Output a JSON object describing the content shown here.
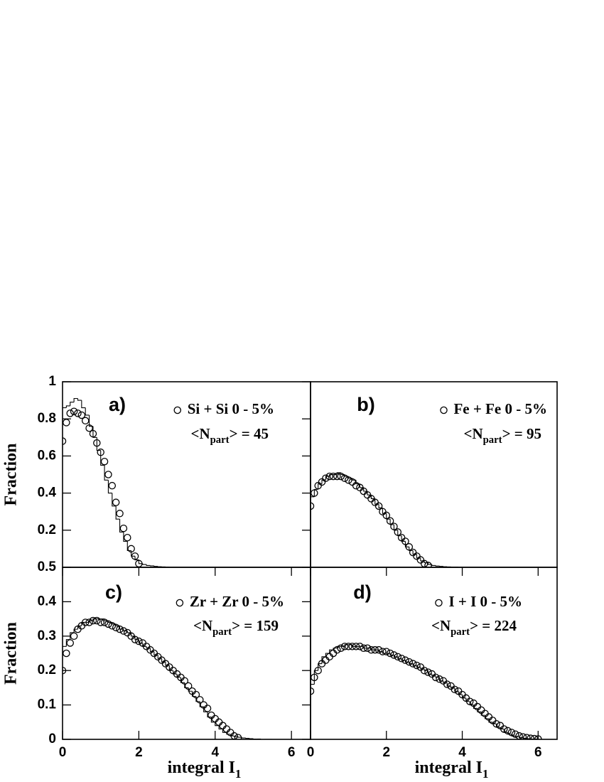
{
  "chart_data": [
    {
      "type": "scatter",
      "label": "a)",
      "annotation": [
        "<N",
        "part",
        "> = 45"
      ],
      "ylabel": "Fraction",
      "xlim": [
        0,
        6.5
      ],
      "ylim": [
        0,
        1
      ],
      "yticks": [
        0.2,
        0.4,
        0.6,
        0.8,
        1
      ],
      "x": [
        0,
        0.1,
        0.2,
        0.3,
        0.4,
        0.5,
        0.6,
        0.7,
        0.8,
        0.9,
        1.0,
        1.1,
        1.2,
        1.3,
        1.4,
        1.5,
        1.6,
        1.7,
        1.8,
        1.9,
        2.0
      ],
      "series": [
        {
          "name": "Si + Si 0 - 5%",
          "color": "#000000",
          "values": [
            0.68,
            0.78,
            0.83,
            0.84,
            0.83,
            0.82,
            0.79,
            0.75,
            0.72,
            0.67,
            0.62,
            0.57,
            0.5,
            0.44,
            0.35,
            0.29,
            0.21,
            0.16,
            0.1,
            0.06,
            0.02
          ]
        }
      ],
      "model": {
        "type": "histogram",
        "color": "#000000",
        "bins": [
          0,
          0.1,
          0.2,
          0.3,
          0.4,
          0.5,
          0.6,
          0.7,
          0.8,
          0.9,
          1.0,
          1.1,
          1.2,
          1.3,
          1.4,
          1.5,
          1.6,
          1.7,
          1.8,
          1.9,
          2.0,
          2.1,
          2.2,
          2.3,
          2.4,
          2.5,
          2.6,
          2.7,
          2.8,
          2.9,
          3.0
        ],
        "values": [
          0.86,
          0.87,
          0.89,
          0.91,
          0.9,
          0.86,
          0.82,
          0.76,
          0.7,
          0.63,
          0.55,
          0.47,
          0.4,
          0.33,
          0.26,
          0.19,
          0.14,
          0.09,
          0.06,
          0.04,
          0.02,
          0.015,
          0.01,
          0.008,
          0.005,
          0.003,
          0.002,
          0.001,
          0,
          0
        ]
      }
    },
    {
      "type": "scatter",
      "label": "b)",
      "annotation": [
        "<N",
        "part",
        "> = 95"
      ],
      "xlim": [
        0,
        6.5
      ],
      "ylim": [
        0,
        1
      ],
      "x": [
        0,
        0.1,
        0.2,
        0.3,
        0.4,
        0.5,
        0.6,
        0.7,
        0.8,
        0.9,
        1.0,
        1.1,
        1.2,
        1.3,
        1.4,
        1.5,
        1.6,
        1.7,
        1.8,
        1.9,
        2.0,
        2.1,
        2.2,
        2.3,
        2.4,
        2.5,
        2.6,
        2.7,
        2.8,
        2.9,
        3.0,
        3.1
      ],
      "series": [
        {
          "name": "Fe + Fe 0 - 5%",
          "color": "#000000",
          "values": [
            0.33,
            0.4,
            0.44,
            0.46,
            0.48,
            0.49,
            0.49,
            0.49,
            0.49,
            0.48,
            0.47,
            0.46,
            0.44,
            0.43,
            0.41,
            0.39,
            0.37,
            0.35,
            0.33,
            0.3,
            0.28,
            0.25,
            0.22,
            0.19,
            0.16,
            0.14,
            0.11,
            0.08,
            0.06,
            0.04,
            0.02,
            0.01
          ]
        }
      ],
      "model": {
        "type": "histogram",
        "color": "#000000",
        "bins": [
          0,
          0.1,
          0.2,
          0.3,
          0.4,
          0.5,
          0.6,
          0.7,
          0.8,
          0.9,
          1.0,
          1.1,
          1.2,
          1.3,
          1.4,
          1.5,
          1.6,
          1.7,
          1.8,
          1.9,
          2.0,
          2.1,
          2.2,
          2.3,
          2.4,
          2.5,
          2.6,
          2.7,
          2.8,
          2.9,
          3.0,
          3.1,
          3.2,
          3.3,
          3.4,
          3.5,
          3.6,
          3.7,
          3.8,
          3.9,
          4.0
        ],
        "values": [
          0.38,
          0.42,
          0.45,
          0.47,
          0.49,
          0.5,
          0.5,
          0.51,
          0.5,
          0.49,
          0.48,
          0.47,
          0.45,
          0.43,
          0.41,
          0.39,
          0.37,
          0.34,
          0.32,
          0.29,
          0.26,
          0.23,
          0.2,
          0.17,
          0.14,
          0.11,
          0.09,
          0.07,
          0.05,
          0.035,
          0.025,
          0.015,
          0.01,
          0.007,
          0.005,
          0.003,
          0.002,
          0.001,
          0.001,
          0
        ]
      }
    },
    {
      "type": "scatter",
      "label": "c)",
      "annotation": [
        "<N",
        "part",
        "> = 159"
      ],
      "ylabel": "Fraction",
      "xlabel": [
        "integral I",
        "1"
      ],
      "xlim": [
        0,
        6.5
      ],
      "ylim": [
        0,
        0.5
      ],
      "xticks": [
        0,
        2,
        4,
        6
      ],
      "yticks": [
        0,
        0.1,
        0.2,
        0.3,
        0.4,
        0.5
      ],
      "x": [
        0,
        0.1,
        0.2,
        0.3,
        0.4,
        0.5,
        0.6,
        0.7,
        0.8,
        0.9,
        1.0,
        1.1,
        1.2,
        1.3,
        1.4,
        1.5,
        1.6,
        1.7,
        1.8,
        1.9,
        2.0,
        2.1,
        2.2,
        2.3,
        2.4,
        2.5,
        2.6,
        2.7,
        2.8,
        2.9,
        3.0,
        3.1,
        3.2,
        3.3,
        3.4,
        3.5,
        3.6,
        3.7,
        3.8,
        3.9,
        4.0,
        4.1,
        4.2,
        4.3,
        4.4,
        4.5,
        4.6
      ],
      "series": [
        {
          "name": "Zr + Zr 0 - 5%",
          "color": "#000000",
          "values": [
            0.2,
            0.25,
            0.28,
            0.3,
            0.32,
            0.33,
            0.34,
            0.34,
            0.345,
            0.345,
            0.34,
            0.34,
            0.335,
            0.33,
            0.325,
            0.32,
            0.315,
            0.31,
            0.3,
            0.29,
            0.285,
            0.28,
            0.27,
            0.26,
            0.25,
            0.24,
            0.23,
            0.22,
            0.21,
            0.2,
            0.19,
            0.18,
            0.17,
            0.155,
            0.14,
            0.13,
            0.115,
            0.1,
            0.09,
            0.07,
            0.06,
            0.05,
            0.04,
            0.03,
            0.02,
            0.01,
            0.005
          ]
        }
      ],
      "model": {
        "type": "histogram",
        "color": "#000000",
        "bins": [
          0,
          0.1,
          0.2,
          0.3,
          0.4,
          0.5,
          0.6,
          0.7,
          0.8,
          0.9,
          1.0,
          1.1,
          1.2,
          1.3,
          1.4,
          1.5,
          1.6,
          1.7,
          1.8,
          1.9,
          2.0,
          2.1,
          2.2,
          2.3,
          2.4,
          2.5,
          2.6,
          2.7,
          2.8,
          2.9,
          3.0,
          3.1,
          3.2,
          3.3,
          3.4,
          3.5,
          3.6,
          3.7,
          3.8,
          3.9,
          4.0,
          4.1,
          4.2,
          4.3,
          4.4,
          4.5,
          4.6,
          4.7,
          4.8,
          4.9,
          5.0,
          5.1,
          5.2,
          5.3,
          5.4,
          5.5
        ],
        "values": [
          0.27,
          0.29,
          0.31,
          0.32,
          0.33,
          0.34,
          0.34,
          0.345,
          0.35,
          0.35,
          0.35,
          0.345,
          0.34,
          0.335,
          0.33,
          0.32,
          0.315,
          0.31,
          0.3,
          0.29,
          0.28,
          0.27,
          0.265,
          0.255,
          0.245,
          0.235,
          0.225,
          0.215,
          0.2,
          0.19,
          0.18,
          0.165,
          0.15,
          0.14,
          0.125,
          0.11,
          0.095,
          0.08,
          0.065,
          0.05,
          0.04,
          0.03,
          0.02,
          0.015,
          0.01,
          0.008,
          0.006,
          0.004,
          0.003,
          0.002,
          0.001,
          0.001,
          0,
          0,
          0
        ]
      }
    },
    {
      "type": "scatter",
      "label": "d)",
      "annotation": [
        "<N",
        "part",
        "> = 224"
      ],
      "xlabel": [
        "integral I",
        "1"
      ],
      "xlim": [
        0,
        6.5
      ],
      "ylim": [
        0,
        0.5
      ],
      "xticks": [
        0,
        2,
        4,
        6
      ],
      "x": [
        0,
        0.1,
        0.2,
        0.3,
        0.4,
        0.5,
        0.6,
        0.7,
        0.8,
        0.9,
        1.0,
        1.1,
        1.2,
        1.3,
        1.4,
        1.5,
        1.6,
        1.7,
        1.8,
        1.9,
        2.0,
        2.1,
        2.2,
        2.3,
        2.4,
        2.5,
        2.6,
        2.7,
        2.8,
        2.9,
        3.0,
        3.1,
        3.2,
        3.3,
        3.4,
        3.5,
        3.6,
        3.7,
        3.8,
        3.9,
        4.0,
        4.1,
        4.2,
        4.3,
        4.4,
        4.5,
        4.6,
        4.7,
        4.8,
        4.9,
        5.0,
        5.1,
        5.2,
        5.3,
        5.4,
        5.5,
        5.6,
        5.7,
        5.8,
        5.9,
        6.0
      ],
      "series": [
        {
          "name": "I + I 0 - 5%",
          "color": "#000000",
          "values": [
            0.14,
            0.18,
            0.2,
            0.22,
            0.23,
            0.24,
            0.25,
            0.26,
            0.265,
            0.27,
            0.27,
            0.27,
            0.27,
            0.27,
            0.265,
            0.265,
            0.26,
            0.26,
            0.26,
            0.255,
            0.255,
            0.25,
            0.245,
            0.24,
            0.235,
            0.23,
            0.225,
            0.22,
            0.215,
            0.21,
            0.2,
            0.195,
            0.19,
            0.18,
            0.175,
            0.17,
            0.16,
            0.155,
            0.145,
            0.14,
            0.13,
            0.12,
            0.11,
            0.105,
            0.095,
            0.085,
            0.075,
            0.065,
            0.055,
            0.045,
            0.04,
            0.03,
            0.025,
            0.02,
            0.015,
            0.01,
            0.007,
            0.005,
            0.003,
            0.002,
            0.001
          ]
        }
      ],
      "model": {
        "type": "histogram",
        "color": "#000000",
        "bins": [
          0,
          0.1,
          0.2,
          0.3,
          0.4,
          0.5,
          0.6,
          0.7,
          0.8,
          0.9,
          1.0,
          1.1,
          1.2,
          1.3,
          1.4,
          1.5,
          1.6,
          1.7,
          1.8,
          1.9,
          2.0,
          2.1,
          2.2,
          2.3,
          2.4,
          2.5,
          2.6,
          2.7,
          2.8,
          2.9,
          3.0,
          3.1,
          3.2,
          3.3,
          3.4,
          3.5,
          3.6,
          3.7,
          3.8,
          3.9,
          4.0,
          4.1,
          4.2,
          4.3,
          4.4,
          4.5,
          4.6,
          4.7,
          4.8,
          4.9,
          5.0,
          5.1,
          5.2,
          5.3,
          5.4,
          5.5,
          5.6,
          5.7,
          5.8,
          5.9,
          6.0,
          6.1,
          6.2,
          6.3,
          6.4,
          6.5
        ],
        "values": [
          0.16,
          0.2,
          0.22,
          0.24,
          0.25,
          0.26,
          0.265,
          0.27,
          0.27,
          0.275,
          0.275,
          0.27,
          0.27,
          0.27,
          0.265,
          0.265,
          0.26,
          0.26,
          0.255,
          0.25,
          0.25,
          0.245,
          0.24,
          0.235,
          0.23,
          0.225,
          0.22,
          0.215,
          0.21,
          0.205,
          0.2,
          0.19,
          0.185,
          0.18,
          0.17,
          0.165,
          0.155,
          0.15,
          0.14,
          0.13,
          0.12,
          0.11,
          0.1,
          0.09,
          0.08,
          0.07,
          0.06,
          0.05,
          0.045,
          0.035,
          0.03,
          0.02,
          0.015,
          0.01,
          0.008,
          0.005,
          0.003,
          0.002,
          0.001,
          0.001,
          0,
          0,
          0,
          0,
          0
        ]
      }
    }
  ]
}
